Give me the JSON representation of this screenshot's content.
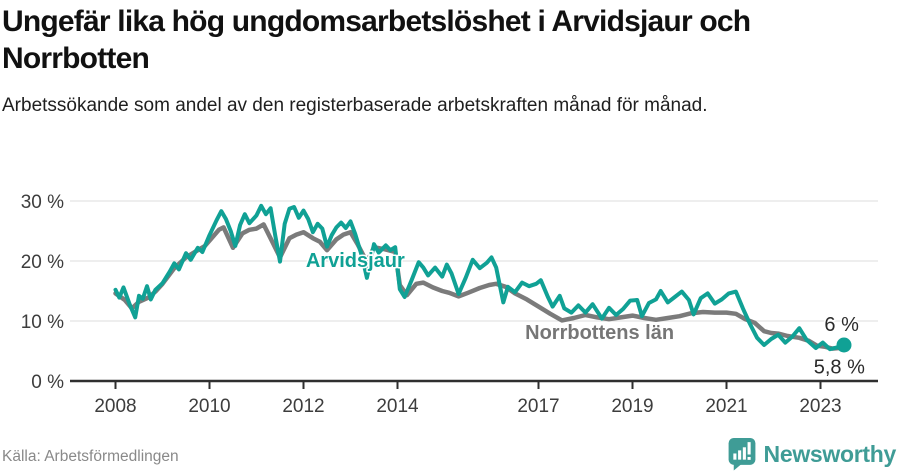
{
  "header": {
    "title": "Ungefär lika hög ungdomsarbetslöshet i Arvidsjaur och Norrbotten",
    "subtitle": "Arbetssökande som andel av den registerbaserade arbetskraften månad för månad."
  },
  "chart_data": {
    "type": "line",
    "title": "Ungefär lika hög ungdomsarbetslöshet i Arvidsjaur och Norrbotten",
    "unit": "percent of registered labour force",
    "grid": "horizontal",
    "x_axis": {
      "ticks": [
        2008,
        2010,
        2012,
        2014,
        2017,
        2019,
        2021,
        2023
      ],
      "range": [
        2007.55,
        2024.35
      ]
    },
    "y_axis": {
      "ticks": [
        0,
        10,
        20,
        30
      ],
      "tick_labels": [
        "0 %",
        "10 %",
        "20 %",
        "30 %"
      ],
      "range": [
        0,
        31
      ]
    },
    "colors": {
      "arvidsjaur": "#10a195",
      "norrbotten": "#7b7b7b",
      "axis": "#2f2f2f",
      "gridline": "#e4e4e4"
    },
    "series": [
      {
        "name": "Norrbottens län",
        "color": "#7b7b7b",
        "line_width": 4.5,
        "end_dot": false,
        "end_value_label": "5,8 %",
        "end_label_pos": {
          "x": 2023.4,
          "y": 2.4
        },
        "inline_label": {
          "text": "Norrbottens län",
          "x": 2018.3,
          "y": 8.2,
          "anchor": "middle",
          "color": "#767676"
        },
        "points": [
          [
            2008.0,
            14.6
          ],
          [
            2008.2,
            13.5
          ],
          [
            2008.35,
            12.1
          ],
          [
            2008.5,
            13.2
          ],
          [
            2008.7,
            13.9
          ],
          [
            2008.85,
            14.9
          ],
          [
            2009.0,
            16.2
          ],
          [
            2009.25,
            18.8
          ],
          [
            2009.5,
            20.6
          ],
          [
            2009.75,
            21.8
          ],
          [
            2009.9,
            22.5
          ],
          [
            2010.0,
            23.4
          ],
          [
            2010.2,
            25.2
          ],
          [
            2010.3,
            25.6
          ],
          [
            2010.5,
            22.2
          ],
          [
            2010.7,
            24.6
          ],
          [
            2010.85,
            25.2
          ],
          [
            2011.0,
            25.4
          ],
          [
            2011.15,
            26.1
          ],
          [
            2011.35,
            23.0
          ],
          [
            2011.5,
            20.6
          ],
          [
            2011.7,
            23.8
          ],
          [
            2011.85,
            24.4
          ],
          [
            2012.0,
            24.8
          ],
          [
            2012.2,
            23.8
          ],
          [
            2012.35,
            23.2
          ],
          [
            2012.5,
            21.8
          ],
          [
            2012.7,
            23.6
          ],
          [
            2012.85,
            24.4
          ],
          [
            2013.0,
            24.8
          ],
          [
            2013.15,
            22.8
          ],
          [
            2013.35,
            19.8
          ],
          [
            2013.5,
            22.3
          ],
          [
            2013.7,
            22.0
          ],
          [
            2013.95,
            21.5
          ],
          [
            2014.05,
            16.0
          ],
          [
            2014.2,
            14.3
          ],
          [
            2014.4,
            16.2
          ],
          [
            2014.55,
            16.4
          ],
          [
            2014.75,
            15.6
          ],
          [
            2014.95,
            15.0
          ],
          [
            2015.1,
            14.7
          ],
          [
            2015.3,
            14.1
          ],
          [
            2015.5,
            14.7
          ],
          [
            2015.75,
            15.5
          ],
          [
            2015.95,
            16.0
          ],
          [
            2016.1,
            16.2
          ],
          [
            2016.3,
            15.7
          ],
          [
            2016.5,
            14.6
          ],
          [
            2016.75,
            13.6
          ],
          [
            2017.0,
            12.4
          ],
          [
            2017.25,
            11.2
          ],
          [
            2017.5,
            10.1
          ],
          [
            2017.75,
            10.5
          ],
          [
            2018.0,
            11.0
          ],
          [
            2018.25,
            10.6
          ],
          [
            2018.5,
            10.3
          ],
          [
            2018.75,
            10.6
          ],
          [
            2019.0,
            10.9
          ],
          [
            2019.25,
            10.5
          ],
          [
            2019.5,
            10.2
          ],
          [
            2019.75,
            10.5
          ],
          [
            2020.0,
            10.8
          ],
          [
            2020.25,
            11.3
          ],
          [
            2020.5,
            11.5
          ],
          [
            2020.75,
            11.4
          ],
          [
            2021.0,
            11.4
          ],
          [
            2021.2,
            11.2
          ],
          [
            2021.4,
            10.3
          ],
          [
            2021.6,
            9.7
          ],
          [
            2021.8,
            8.3
          ],
          [
            2021.95,
            8.0
          ],
          [
            2022.1,
            7.9
          ],
          [
            2022.3,
            7.5
          ],
          [
            2022.55,
            7.2
          ],
          [
            2022.75,
            6.7
          ],
          [
            2022.92,
            5.9
          ],
          [
            2023.1,
            5.7
          ],
          [
            2023.25,
            5.4
          ],
          [
            2023.4,
            5.5
          ],
          [
            2023.5,
            5.8
          ]
        ]
      },
      {
        "name": "Arvidsjaur",
        "color": "#10a195",
        "line_width": 4,
        "end_dot": true,
        "end_value_label": "6 %",
        "end_label_pos": {
          "x": 2023.45,
          "y": 9.5
        },
        "inline_label": {
          "text": "Arvidsjaur",
          "x": 2012.05,
          "y": 20.2,
          "anchor": "start",
          "color": "#10a195"
        },
        "points": [
          [
            2008.0,
            15.2
          ],
          [
            2008.08,
            13.9
          ],
          [
            2008.17,
            15.6
          ],
          [
            2008.3,
            12.8
          ],
          [
            2008.42,
            10.6
          ],
          [
            2008.5,
            14.2
          ],
          [
            2008.58,
            13.7
          ],
          [
            2008.67,
            15.8
          ],
          [
            2008.75,
            13.6
          ],
          [
            2008.85,
            15.2
          ],
          [
            2009.0,
            16.3
          ],
          [
            2009.15,
            18.2
          ],
          [
            2009.25,
            19.6
          ],
          [
            2009.35,
            18.6
          ],
          [
            2009.5,
            21.3
          ],
          [
            2009.6,
            20.2
          ],
          [
            2009.75,
            22.2
          ],
          [
            2009.85,
            21.5
          ],
          [
            2010.0,
            24.3
          ],
          [
            2010.15,
            26.8
          ],
          [
            2010.25,
            28.3
          ],
          [
            2010.35,
            27.0
          ],
          [
            2010.45,
            25.0
          ],
          [
            2010.55,
            22.5
          ],
          [
            2010.65,
            26.0
          ],
          [
            2010.75,
            27.8
          ],
          [
            2010.85,
            26.3
          ],
          [
            2011.0,
            27.6
          ],
          [
            2011.1,
            29.2
          ],
          [
            2011.2,
            27.8
          ],
          [
            2011.3,
            28.8
          ],
          [
            2011.4,
            24.2
          ],
          [
            2011.5,
            19.9
          ],
          [
            2011.6,
            26.2
          ],
          [
            2011.7,
            28.7
          ],
          [
            2011.8,
            29.0
          ],
          [
            2011.9,
            27.2
          ],
          [
            2012.0,
            28.4
          ],
          [
            2012.1,
            27.0
          ],
          [
            2012.2,
            24.8
          ],
          [
            2012.3,
            26.2
          ],
          [
            2012.4,
            25.4
          ],
          [
            2012.5,
            22.4
          ],
          [
            2012.6,
            24.3
          ],
          [
            2012.7,
            25.6
          ],
          [
            2012.8,
            26.4
          ],
          [
            2012.9,
            25.5
          ],
          [
            2013.0,
            26.6
          ],
          [
            2013.1,
            24.5
          ],
          [
            2013.25,
            20.6
          ],
          [
            2013.35,
            17.2
          ],
          [
            2013.5,
            22.8
          ],
          [
            2013.6,
            21.4
          ],
          [
            2013.75,
            22.6
          ],
          [
            2013.85,
            21.8
          ],
          [
            2013.95,
            22.3
          ],
          [
            2014.05,
            15.3
          ],
          [
            2014.15,
            14.0
          ],
          [
            2014.3,
            16.8
          ],
          [
            2014.45,
            19.8
          ],
          [
            2014.55,
            18.9
          ],
          [
            2014.65,
            17.6
          ],
          [
            2014.8,
            18.9
          ],
          [
            2014.95,
            17.4
          ],
          [
            2015.05,
            19.4
          ],
          [
            2015.15,
            17.9
          ],
          [
            2015.3,
            14.5
          ],
          [
            2015.45,
            17.2
          ],
          [
            2015.6,
            20.2
          ],
          [
            2015.75,
            18.8
          ],
          [
            2015.9,
            19.7
          ],
          [
            2016.0,
            20.6
          ],
          [
            2016.1,
            18.9
          ],
          [
            2016.25,
            13.1
          ],
          [
            2016.35,
            15.7
          ],
          [
            2016.5,
            14.8
          ],
          [
            2016.65,
            16.4
          ],
          [
            2016.8,
            15.8
          ],
          [
            2016.95,
            16.2
          ],
          [
            2017.05,
            16.8
          ],
          [
            2017.2,
            14.0
          ],
          [
            2017.3,
            12.4
          ],
          [
            2017.45,
            14.2
          ],
          [
            2017.55,
            12.1
          ],
          [
            2017.7,
            11.4
          ],
          [
            2017.85,
            12.6
          ],
          [
            2018.0,
            11.4
          ],
          [
            2018.15,
            12.8
          ],
          [
            2018.35,
            10.4
          ],
          [
            2018.5,
            12.2
          ],
          [
            2018.65,
            11.0
          ],
          [
            2018.8,
            12.0
          ],
          [
            2018.95,
            13.4
          ],
          [
            2019.1,
            13.5
          ],
          [
            2019.2,
            10.8
          ],
          [
            2019.35,
            13.0
          ],
          [
            2019.5,
            13.6
          ],
          [
            2019.6,
            15.0
          ],
          [
            2019.75,
            13.1
          ],
          [
            2019.9,
            14.0
          ],
          [
            2020.05,
            14.9
          ],
          [
            2020.2,
            13.5
          ],
          [
            2020.3,
            11.1
          ],
          [
            2020.45,
            13.8
          ],
          [
            2020.6,
            14.6
          ],
          [
            2020.75,
            12.9
          ],
          [
            2020.9,
            13.6
          ],
          [
            2021.05,
            14.6
          ],
          [
            2021.2,
            14.9
          ],
          [
            2021.35,
            12.1
          ],
          [
            2021.5,
            9.5
          ],
          [
            2021.65,
            7.2
          ],
          [
            2021.8,
            6.0
          ],
          [
            2021.95,
            7.0
          ],
          [
            2022.1,
            7.7
          ],
          [
            2022.25,
            6.4
          ],
          [
            2022.4,
            7.4
          ],
          [
            2022.55,
            8.8
          ],
          [
            2022.7,
            6.9
          ],
          [
            2022.9,
            5.5
          ],
          [
            2023.05,
            6.4
          ],
          [
            2023.2,
            5.3
          ],
          [
            2023.35,
            5.6
          ],
          [
            2023.5,
            6.0
          ]
        ]
      }
    ]
  },
  "footer": {
    "source": "Källa: Arbetsförmedlingen",
    "brand": "Newsworthy"
  }
}
